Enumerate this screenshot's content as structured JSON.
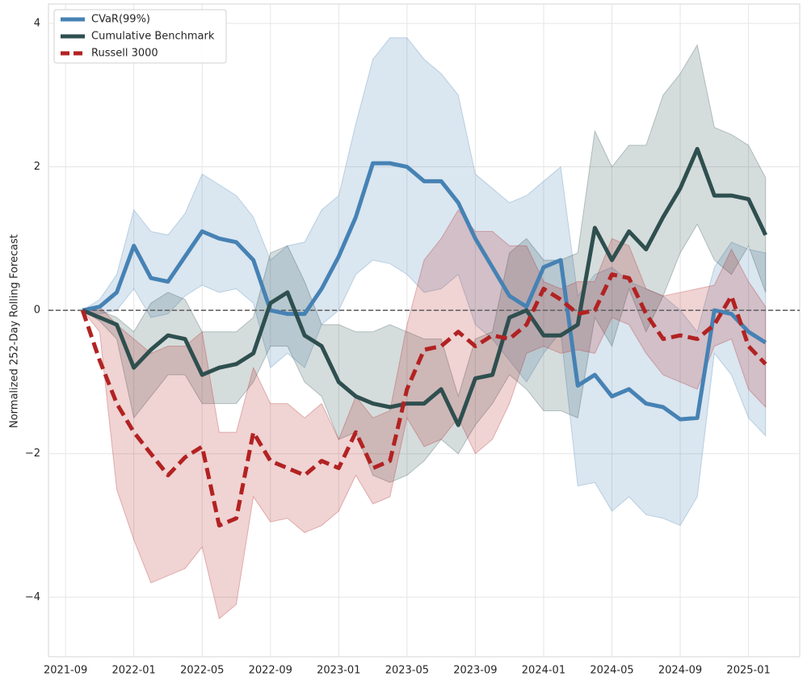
{
  "chart_data": {
    "type": "line",
    "ylabel": "Normalized 252-Day Rolling Forecast",
    "x": [
      "2021-10",
      "2021-11",
      "2021-12",
      "2022-01",
      "2022-02",
      "2022-03",
      "2022-04",
      "2022-05",
      "2022-06",
      "2022-07",
      "2022-08",
      "2022-09",
      "2022-10",
      "2022-11",
      "2022-12",
      "2023-01",
      "2023-02",
      "2023-03",
      "2023-04",
      "2023-05",
      "2023-06",
      "2023-07",
      "2023-08",
      "2023-09",
      "2023-10",
      "2023-11",
      "2023-12",
      "2024-01",
      "2024-02",
      "2024-03",
      "2024-04",
      "2024-05",
      "2024-06",
      "2024-07",
      "2024-08",
      "2024-09",
      "2024-10",
      "2024-11",
      "2024-12",
      "2025-01",
      "2025-02"
    ],
    "series": [
      {
        "name": "CVaR(99%)",
        "color": "#4682b4",
        "dash": "solid",
        "values": [
          0,
          0.05,
          0.25,
          0.9,
          0.45,
          0.4,
          0.75,
          1.1,
          1.0,
          0.95,
          0.7,
          0.0,
          -0.05,
          -0.05,
          0.3,
          0.75,
          1.3,
          2.05,
          2.05,
          2.0,
          1.8,
          1.8,
          1.5,
          1.0,
          0.6,
          0.2,
          0.05,
          0.6,
          0.7,
          -1.05,
          -0.9,
          -1.2,
          -1.1,
          -1.3,
          -1.35,
          -1.52,
          -1.5,
          0.0,
          -0.05,
          -0.3,
          -0.45
        ],
        "lower": [
          0,
          -0.05,
          0.0,
          0.3,
          -0.1,
          -0.05,
          0.2,
          0.35,
          0.25,
          0.3,
          0.1,
          -0.8,
          -0.6,
          -0.8,
          -0.2,
          0.0,
          0.5,
          0.7,
          0.65,
          0.5,
          0.25,
          0.3,
          0.5,
          -0.2,
          -0.4,
          -0.7,
          -1.0,
          -0.6,
          -0.3,
          -2.45,
          -2.4,
          -2.8,
          -2.6,
          -2.85,
          -2.9,
          -3.0,
          -2.6,
          -0.6,
          -0.9,
          -1.5,
          -1.75
        ],
        "upper": [
          0,
          0.15,
          0.5,
          1.4,
          1.1,
          1.05,
          1.35,
          1.9,
          1.75,
          1.6,
          1.3,
          0.7,
          0.9,
          0.95,
          1.4,
          1.6,
          2.6,
          3.5,
          3.8,
          3.8,
          3.5,
          3.3,
          3.0,
          1.9,
          1.7,
          1.5,
          1.6,
          1.8,
          2.0,
          0.2,
          0.5,
          0.6,
          0.4,
          0.3,
          0.2,
          0.0,
          -0.3,
          0.6,
          0.95,
          0.85,
          0.8
        ]
      },
      {
        "name": "Cumulative Benchmark",
        "color": "#2f4f4f",
        "dash": "solid",
        "values": [
          0,
          -0.1,
          -0.2,
          -0.8,
          -0.55,
          -0.35,
          -0.4,
          -0.9,
          -0.8,
          -0.75,
          -0.6,
          0.1,
          0.25,
          -0.35,
          -0.5,
          -1.0,
          -1.2,
          -1.3,
          -1.35,
          -1.3,
          -1.3,
          -1.1,
          -1.6,
          -0.95,
          -0.9,
          -0.1,
          0.0,
          -0.35,
          -0.35,
          -0.2,
          1.15,
          0.7,
          1.1,
          0.85,
          1.3,
          1.7,
          2.25,
          1.6,
          1.6,
          1.55,
          1.05
        ],
        "lower": [
          0,
          -0.15,
          -0.4,
          -1.5,
          -1.2,
          -0.9,
          -0.9,
          -1.3,
          -1.3,
          -1.3,
          -1.0,
          -0.5,
          -0.5,
          -1.0,
          -1.2,
          -1.8,
          -1.7,
          -2.3,
          -2.4,
          -2.3,
          -2.1,
          -1.8,
          -2.0,
          -1.6,
          -1.3,
          -0.9,
          -1.1,
          -1.4,
          -1.4,
          -1.5,
          -0.1,
          -0.5,
          0.3,
          -0.3,
          0.2,
          0.8,
          1.2,
          0.7,
          0.5,
          0.9,
          0.25
        ],
        "upper": [
          0,
          0.0,
          -0.1,
          -0.3,
          0.1,
          0.25,
          0.15,
          -0.3,
          -0.3,
          -0.3,
          -0.1,
          0.8,
          0.9,
          0.4,
          -0.2,
          -0.2,
          -0.3,
          -0.3,
          -0.2,
          -0.3,
          -0.4,
          -0.4,
          -1.2,
          -0.4,
          -0.3,
          0.8,
          1.0,
          0.7,
          0.7,
          0.8,
          2.5,
          2.0,
          2.3,
          2.3,
          3.0,
          3.3,
          3.7,
          2.55,
          2.45,
          2.3,
          1.85
        ]
      },
      {
        "name": "Russell 3000",
        "color": "#b22222",
        "dash": "dashed",
        "values": [
          0,
          -0.7,
          -1.3,
          -1.7,
          -2.0,
          -2.3,
          -2.05,
          -1.9,
          -3.0,
          -2.9,
          -1.7,
          -2.1,
          -2.2,
          -2.3,
          -2.1,
          -2.2,
          -1.7,
          -2.2,
          -2.1,
          -1.1,
          -0.55,
          -0.5,
          -0.3,
          -0.5,
          -0.35,
          -0.4,
          -0.2,
          0.3,
          0.15,
          -0.05,
          0.0,
          0.5,
          0.45,
          -0.05,
          -0.4,
          -0.35,
          -0.4,
          -0.2,
          0.2,
          -0.5,
          -0.75
        ],
        "lower": [
          0,
          -0.3,
          -2.5,
          -3.2,
          -3.8,
          -3.7,
          -3.6,
          -3.3,
          -4.3,
          -4.1,
          -2.6,
          -2.95,
          -2.9,
          -3.1,
          -3.0,
          -2.8,
          -2.3,
          -2.7,
          -2.6,
          -1.5,
          -1.9,
          -1.8,
          -1.5,
          -2.0,
          -1.8,
          -1.3,
          -0.6,
          -0.5,
          -0.6,
          -0.55,
          -0.6,
          -0.1,
          -0.2,
          -0.6,
          -0.9,
          -1.0,
          -1.1,
          -0.5,
          -0.4,
          -1.1,
          -1.35
        ],
        "upper": [
          0,
          0.05,
          -0.2,
          -0.4,
          -0.6,
          -0.5,
          -0.5,
          -0.3,
          -1.7,
          -1.7,
          -0.8,
          -1.3,
          -1.3,
          -1.5,
          -1.3,
          -1.8,
          -1.2,
          -1.5,
          -1.4,
          -0.2,
          0.7,
          1.0,
          1.4,
          1.1,
          1.1,
          0.9,
          0.9,
          0.4,
          0.3,
          0.4,
          0.4,
          1.0,
          0.9,
          0.3,
          0.2,
          0.25,
          0.3,
          0.35,
          0.85,
          0.4,
          0.05
        ]
      }
    ],
    "reference_line": 0,
    "xlim": [
      "2021-08",
      "2025-04"
    ],
    "xticks": [
      "2021-09",
      "2022-01",
      "2022-05",
      "2022-09",
      "2023-01",
      "2023-05",
      "2023-09",
      "2024-01",
      "2024-05",
      "2024-09",
      "2025-01"
    ],
    "ylim": [
      -4.83,
      4.27
    ],
    "yticks": [
      {
        "value": -4,
        "label": "−4"
      },
      {
        "value": -2,
        "label": "−2"
      },
      0,
      2,
      4
    ],
    "grid": true,
    "legend": "upper left"
  }
}
